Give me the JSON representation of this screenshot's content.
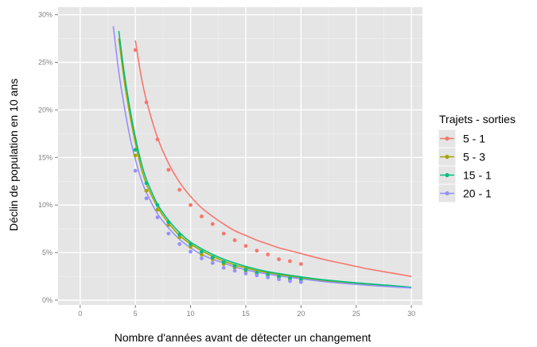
{
  "chart_data": {
    "type": "line",
    "title": "",
    "xlabel": "Nombre d'années avant de détecter un changement",
    "ylabel": "Déclin de population en 10 ans",
    "xlim": [
      -2,
      31
    ],
    "ylim": [
      -0.5,
      30.8
    ],
    "x_ticks": [
      0,
      5,
      10,
      15,
      20,
      25,
      30
    ],
    "x_tick_labels": [
      "0",
      "5",
      "10",
      "15",
      "20",
      "25",
      "30"
    ],
    "y_ticks": [
      0,
      5,
      10,
      15,
      20,
      25,
      30
    ],
    "y_tick_labels": [
      "0%",
      "5%",
      "10%",
      "15%",
      "20%",
      "25%",
      "30%"
    ],
    "grid": true,
    "background": "#e5e5e5",
    "legend": {
      "title": "Trajets - sorties",
      "position": "right"
    },
    "series": [
      {
        "name": "5 - 1",
        "color": "#f8766d",
        "points": [
          [
            5,
            26.3
          ],
          [
            6,
            20.8
          ],
          [
            7,
            16.9
          ],
          [
            8,
            13.7
          ],
          [
            9,
            11.6
          ],
          [
            10,
            10.0
          ],
          [
            11,
            8.8
          ],
          [
            12,
            8.0
          ],
          [
            13,
            7.0
          ],
          [
            14,
            6.3
          ],
          [
            15,
            5.7
          ],
          [
            16,
            5.2
          ],
          [
            17,
            4.8
          ],
          [
            18,
            4.3
          ],
          [
            19,
            4.1
          ],
          [
            20,
            3.8
          ]
        ],
        "curve": [
          [
            5,
            27.3
          ],
          [
            5.5,
            23.7
          ],
          [
            6,
            21.0
          ],
          [
            7,
            17.1
          ],
          [
            8,
            14.4
          ],
          [
            9,
            12.4
          ],
          [
            10,
            10.9
          ],
          [
            11,
            9.7
          ],
          [
            12,
            8.8
          ],
          [
            13,
            8.0
          ],
          [
            14,
            7.3
          ],
          [
            15,
            6.8
          ],
          [
            16,
            6.3
          ],
          [
            17,
            5.9
          ],
          [
            18,
            5.5
          ],
          [
            19,
            5.2
          ],
          [
            20,
            4.9
          ],
          [
            22,
            4.3
          ],
          [
            24,
            3.8
          ],
          [
            26,
            3.3
          ],
          [
            28,
            2.9
          ],
          [
            30,
            2.5
          ]
        ]
      },
      {
        "name": "5 - 3",
        "color": "#a3a500",
        "points": [
          [
            5,
            15.2
          ],
          [
            6,
            11.5
          ],
          [
            7,
            9.5
          ],
          [
            8,
            7.9
          ],
          [
            9,
            6.6
          ],
          [
            10,
            5.6
          ],
          [
            11,
            4.8
          ],
          [
            12,
            4.3
          ],
          [
            13,
            3.8
          ],
          [
            14,
            3.4
          ],
          [
            15,
            3.1
          ],
          [
            16,
            2.8
          ],
          [
            17,
            2.6
          ],
          [
            18,
            2.4
          ],
          [
            19,
            2.2
          ],
          [
            20,
            2.1
          ]
        ],
        "curve": [
          [
            3.5,
            27.5
          ],
          [
            4,
            23.0
          ],
          [
            4.5,
            19.5
          ],
          [
            5,
            16.5
          ],
          [
            5.5,
            14.0
          ],
          [
            6,
            12.2
          ],
          [
            7,
            9.8
          ],
          [
            8,
            8.1
          ],
          [
            9,
            6.8
          ],
          [
            10,
            5.9
          ],
          [
            11,
            5.2
          ],
          [
            12,
            4.6
          ],
          [
            13,
            4.1
          ],
          [
            14,
            3.7
          ],
          [
            15,
            3.4
          ],
          [
            16,
            3.1
          ],
          [
            17,
            2.9
          ],
          [
            18,
            2.7
          ],
          [
            20,
            2.35
          ],
          [
            22,
            2.05
          ],
          [
            25,
            1.75
          ],
          [
            28,
            1.5
          ],
          [
            30,
            1.3
          ]
        ]
      },
      {
        "name": "15 - 1",
        "color": "#00bf7d",
        "points": [
          [
            5,
            15.8
          ],
          [
            6,
            12.3
          ],
          [
            7,
            10.0
          ],
          [
            8,
            8.2
          ],
          [
            9,
            6.9
          ],
          [
            10,
            5.9
          ],
          [
            11,
            5.1
          ],
          [
            12,
            4.5
          ],
          [
            13,
            4.0
          ],
          [
            14,
            3.6
          ],
          [
            15,
            3.2
          ],
          [
            16,
            2.9
          ],
          [
            17,
            2.7
          ],
          [
            18,
            2.5
          ],
          [
            19,
            2.3
          ],
          [
            20,
            2.2
          ]
        ],
        "curve": [
          [
            3.5,
            28.3
          ],
          [
            4,
            23.8
          ],
          [
            4.5,
            20.2
          ],
          [
            5,
            17.1
          ],
          [
            5.5,
            14.6
          ],
          [
            6,
            12.7
          ],
          [
            7,
            10.1
          ],
          [
            8,
            8.4
          ],
          [
            9,
            7.1
          ],
          [
            10,
            6.1
          ],
          [
            11,
            5.4
          ],
          [
            12,
            4.8
          ],
          [
            13,
            4.3
          ],
          [
            14,
            3.9
          ],
          [
            15,
            3.55
          ],
          [
            16,
            3.25
          ],
          [
            17,
            3.0
          ],
          [
            18,
            2.8
          ],
          [
            20,
            2.45
          ],
          [
            22,
            2.15
          ],
          [
            25,
            1.82
          ],
          [
            28,
            1.55
          ],
          [
            30,
            1.35
          ]
        ]
      },
      {
        "name": "20 - 1",
        "color": "#9590ff",
        "points": [
          [
            5,
            13.6
          ],
          [
            6,
            10.7
          ],
          [
            7,
            8.7
          ],
          [
            8,
            7.0
          ],
          [
            9,
            5.9
          ],
          [
            10,
            5.1
          ],
          [
            11,
            4.4
          ],
          [
            12,
            3.9
          ],
          [
            13,
            3.4
          ],
          [
            14,
            3.1
          ],
          [
            15,
            2.8
          ],
          [
            16,
            2.6
          ],
          [
            17,
            2.4
          ],
          [
            18,
            2.2
          ],
          [
            19,
            2.0
          ],
          [
            20,
            1.9
          ]
        ],
        "curve": [
          [
            3,
            28.8
          ],
          [
            3.5,
            24.0
          ],
          [
            4,
            20.3
          ],
          [
            4.5,
            17.2
          ],
          [
            5,
            14.8
          ],
          [
            5.5,
            12.8
          ],
          [
            6,
            11.3
          ],
          [
            7,
            9.1
          ],
          [
            8,
            7.6
          ],
          [
            9,
            6.4
          ],
          [
            10,
            5.5
          ],
          [
            11,
            4.8
          ],
          [
            12,
            4.3
          ],
          [
            13,
            3.9
          ],
          [
            14,
            3.5
          ],
          [
            15,
            3.2
          ],
          [
            16,
            2.95
          ],
          [
            17,
            2.75
          ],
          [
            18,
            2.55
          ],
          [
            20,
            2.25
          ],
          [
            22,
            1.95
          ],
          [
            25,
            1.65
          ],
          [
            28,
            1.42
          ],
          [
            30,
            1.28
          ]
        ]
      }
    ]
  }
}
